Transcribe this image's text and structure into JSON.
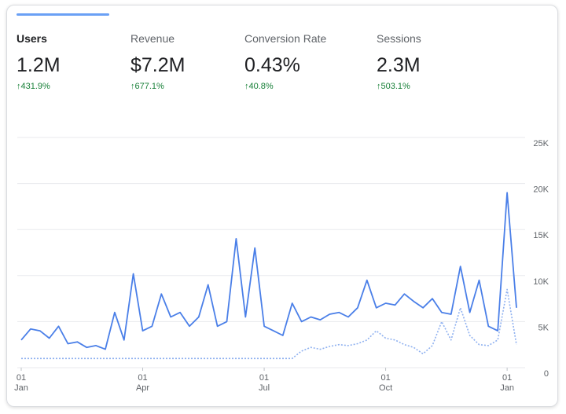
{
  "metrics": [
    {
      "label": "Users",
      "value": "1.2M",
      "change": "↑431.9%"
    },
    {
      "label": "Revenue",
      "value": "$7.2M",
      "change": "↑677.1%"
    },
    {
      "label": "Conversion Rate",
      "value": "0.43%",
      "change": "↑40.8%"
    },
    {
      "label": "Sessions",
      "value": "2.3M",
      "change": "↑503.1%"
    }
  ],
  "chart_data": {
    "type": "line",
    "categories": [
      "01 Jan",
      null,
      null,
      null,
      null,
      null,
      null,
      null,
      null,
      null,
      null,
      null,
      null,
      "01 Apr",
      null,
      null,
      null,
      null,
      null,
      null,
      null,
      null,
      null,
      null,
      null,
      null,
      "01 Jul",
      null,
      null,
      null,
      null,
      null,
      null,
      null,
      null,
      null,
      null,
      null,
      null,
      "01 Oct",
      null,
      null,
      null,
      null,
      null,
      null,
      null,
      null,
      null,
      null,
      null,
      null,
      "01 Jan",
      null
    ],
    "series": [
      {
        "color": "#4a7fe8",
        "values": [
          3000,
          4200,
          4000,
          3200,
          4500,
          2600,
          2800,
          2200,
          2400,
          2000,
          6000,
          3000,
          10200,
          4000,
          4500,
          8000,
          5500,
          6000,
          4500,
          5500,
          9000,
          4500,
          5000,
          14000,
          5500,
          13000,
          4500,
          4000,
          3500,
          7000,
          5000,
          5500,
          5200,
          5800,
          6000,
          5500,
          6500,
          9500,
          6500,
          7000,
          6800,
          8000,
          7200,
          6500,
          7500,
          6000,
          5800,
          11000,
          6000,
          9500,
          4500,
          4000,
          19000,
          6500
        ]
      },
      {
        "color": "#8fb1f0",
        "dashed": true,
        "values": [
          1000,
          1000,
          1000,
          1000,
          1000,
          1000,
          1000,
          1000,
          1000,
          1000,
          1000,
          1000,
          1000,
          1000,
          1000,
          1000,
          1000,
          1000,
          1000,
          1000,
          1000,
          1000,
          1000,
          1000,
          1000,
          1000,
          1000,
          1000,
          1000,
          1000,
          1800,
          2200,
          2000,
          2300,
          2500,
          2400,
          2600,
          3000,
          4000,
          3200,
          3000,
          2500,
          2200,
          1500,
          2400,
          5000,
          3000,
          6500,
          3500,
          2500,
          2400,
          3000,
          8500,
          2500
        ]
      }
    ],
    "ylim": [
      0,
      25000
    ],
    "yticks": [
      0,
      {
        "value": 5000,
        "label": "5K"
      },
      {
        "value": 10000,
        "label": "10K"
      },
      {
        "value": 15000,
        "label": "15K"
      },
      {
        "value": 20000,
        "label": "20K"
      },
      {
        "value": 25000,
        "label": "25K"
      }
    ],
    "grid": true
  }
}
